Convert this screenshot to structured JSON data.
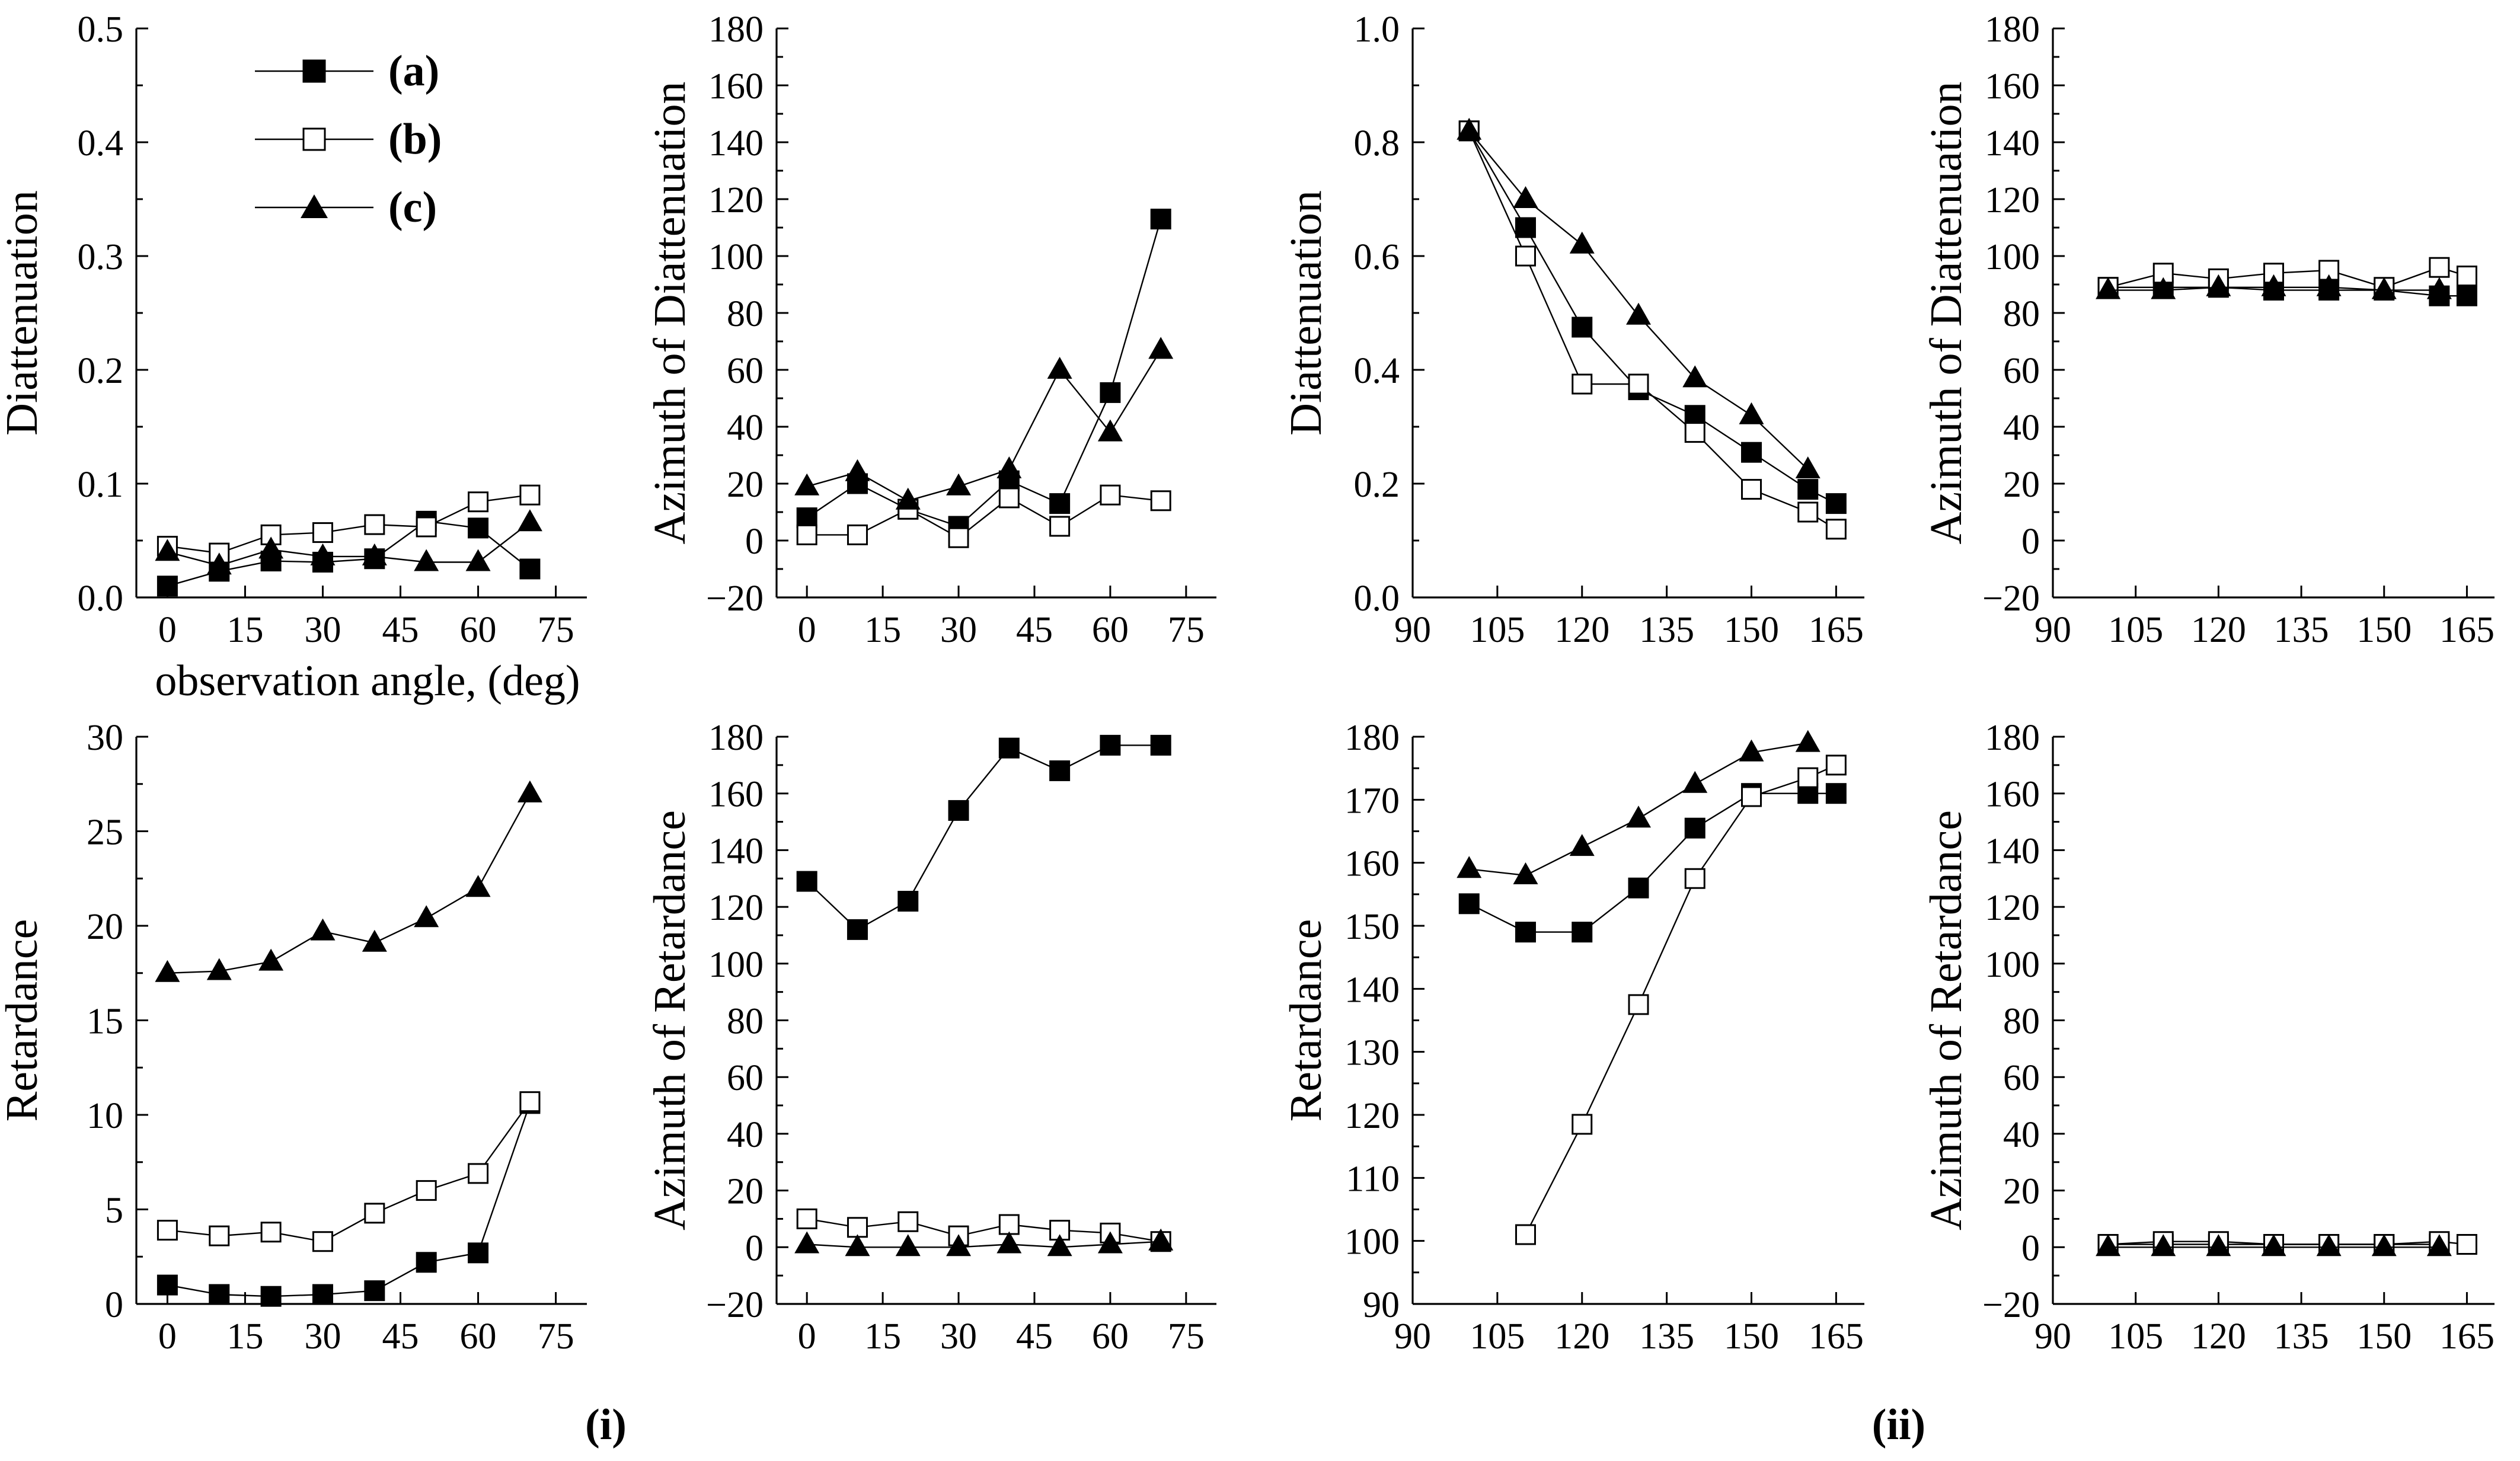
{
  "legend": {
    "entries": [
      {
        "label": "(a)",
        "marker": "filled-square"
      },
      {
        "label": "(b)",
        "marker": "open-square"
      },
      {
        "label": "(c)",
        "marker": "filled-triangle"
      }
    ]
  },
  "group_labels": [
    "(i)",
    "(ii)"
  ],
  "chart_data": [
    {
      "type": "line",
      "id": "p1",
      "group": "(i)",
      "xlabel": "observation angle, (deg)",
      "ylabel": "Diattenuation",
      "xlim": [
        -6,
        81
      ],
      "ylim": [
        0,
        0.5
      ],
      "xticks": [
        0,
        15,
        30,
        45,
        60,
        75
      ],
      "yticks": [
        0.0,
        0.1,
        0.2,
        0.3,
        0.4,
        0.5
      ],
      "ytick_labels": [
        "0.0",
        "0.1",
        "0.2",
        "0.3",
        "0.4",
        "0.5"
      ],
      "legend": "top-left",
      "series": [
        {
          "name": "(a)",
          "marker": "filled-square",
          "x": [
            0,
            10,
            20,
            30,
            40,
            50,
            60,
            70
          ],
          "y": [
            0.01,
            0.023,
            0.032,
            0.031,
            0.034,
            0.067,
            0.061,
            0.025
          ]
        },
        {
          "name": "(b)",
          "marker": "open-square",
          "x": [
            0,
            10,
            20,
            30,
            40,
            50,
            60,
            70
          ],
          "y": [
            0.045,
            0.039,
            0.055,
            0.057,
            0.064,
            0.062,
            0.084,
            0.09
          ]
        },
        {
          "name": "(c)",
          "marker": "filled-triangle",
          "x": [
            0,
            10,
            20,
            30,
            40,
            50,
            60,
            70
          ],
          "y": [
            0.04,
            0.028,
            0.042,
            0.036,
            0.036,
            0.031,
            0.031,
            0.066
          ]
        }
      ]
    },
    {
      "type": "line",
      "id": "p2",
      "group": "(i)",
      "xlabel": "",
      "ylabel": "Azimuth of Diattenuation",
      "xlim": [
        -6,
        81
      ],
      "ylim": [
        -20,
        180
      ],
      "xticks": [
        0,
        15,
        30,
        45,
        60,
        75
      ],
      "yticks": [
        -20,
        0,
        20,
        40,
        60,
        80,
        100,
        120,
        140,
        160,
        180
      ],
      "ytick_labels": [
        "−20",
        "0",
        "20",
        "40",
        "60",
        "80",
        "100",
        "120",
        "140",
        "160",
        "180"
      ],
      "series": [
        {
          "name": "(a)",
          "marker": "filled-square",
          "x": [
            0,
            10,
            20,
            30,
            40,
            50,
            60,
            70
          ],
          "y": [
            8,
            20,
            11,
            5,
            21,
            13,
            52,
            113
          ]
        },
        {
          "name": "(b)",
          "marker": "open-square",
          "x": [
            0,
            10,
            20,
            30,
            40,
            50,
            60,
            70
          ],
          "y": [
            2,
            2,
            11,
            1,
            15,
            5,
            16,
            14
          ]
        },
        {
          "name": "(c)",
          "marker": "filled-triangle",
          "x": [
            0,
            10,
            20,
            30,
            40,
            50,
            60,
            70
          ],
          "y": [
            19,
            24,
            14,
            19,
            25,
            60,
            38,
            67
          ]
        }
      ]
    },
    {
      "type": "line",
      "id": "p3",
      "group": "(ii)",
      "xlabel": "",
      "ylabel": "Diattenuation",
      "xlim": [
        90,
        170
      ],
      "ylim": [
        0,
        1
      ],
      "xticks": [
        90,
        105,
        120,
        135,
        150,
        165
      ],
      "yticks": [
        0.0,
        0.2,
        0.4,
        0.6,
        0.8,
        1.0
      ],
      "ytick_labels": [
        "0.0",
        "0.2",
        "0.4",
        "0.6",
        "0.8",
        "1.0"
      ],
      "series": [
        {
          "name": "(a)",
          "marker": "filled-square",
          "x": [
            100,
            110,
            120,
            130,
            140,
            150,
            160,
            165
          ],
          "y": [
            0.82,
            0.65,
            0.475,
            0.365,
            0.32,
            0.255,
            0.19,
            0.165
          ]
        },
        {
          "name": "(b)",
          "marker": "open-square",
          "x": [
            100,
            110,
            120,
            130,
            140,
            150,
            160,
            165
          ],
          "y": [
            0.82,
            0.6,
            0.375,
            0.375,
            0.29,
            0.19,
            0.15,
            0.12
          ]
        },
        {
          "name": "(c)",
          "marker": "filled-triangle",
          "x": [
            100,
            110,
            120,
            130,
            140,
            150,
            160
          ],
          "y": [
            0.82,
            0.7,
            0.62,
            0.495,
            0.385,
            0.32,
            0.225
          ]
        }
      ]
    },
    {
      "type": "line",
      "id": "p4",
      "group": "(ii)",
      "xlabel": "",
      "ylabel": "Azimuth of Diattenuation",
      "xlim": [
        90,
        170
      ],
      "ylim": [
        -20,
        180
      ],
      "xticks": [
        90,
        105,
        120,
        135,
        150,
        165
      ],
      "yticks": [
        -20,
        0,
        20,
        40,
        60,
        80,
        100,
        120,
        140,
        160,
        180
      ],
      "ytick_labels": [
        "−20",
        "0",
        "20",
        "40",
        "60",
        "80",
        "100",
        "120",
        "140",
        "160",
        "180"
      ],
      "series": [
        {
          "name": "(a)",
          "marker": "filled-square",
          "x": [
            100,
            110,
            120,
            130,
            140,
            150,
            160,
            165
          ],
          "y": [
            89,
            89,
            89,
            88,
            88,
            88,
            86,
            86
          ]
        },
        {
          "name": "(b)",
          "marker": "open-square",
          "x": [
            100,
            110,
            120,
            130,
            140,
            150,
            160,
            165
          ],
          "y": [
            89,
            94,
            92,
            94,
            95,
            89,
            96,
            93
          ]
        },
        {
          "name": "(c)",
          "marker": "filled-triangle",
          "x": [
            100,
            110,
            120,
            130,
            140,
            150,
            160
          ],
          "y": [
            88,
            88,
            89,
            89,
            89,
            88,
            88
          ]
        }
      ]
    },
    {
      "type": "line",
      "id": "p5",
      "group": "(i)",
      "xlabel": "",
      "ylabel": "Retardance",
      "xlim": [
        -6,
        81
      ],
      "ylim": [
        0,
        30
      ],
      "xticks": [
        0,
        15,
        30,
        45,
        60,
        75
      ],
      "yticks": [
        0,
        5,
        10,
        15,
        20,
        25,
        30
      ],
      "ytick_labels": [
        "0",
        "5",
        "10",
        "15",
        "20",
        "25",
        "30"
      ],
      "series": [
        {
          "name": "(a)",
          "marker": "filled-square",
          "x": [
            0,
            10,
            20,
            30,
            40,
            50,
            60,
            70
          ],
          "y": [
            1.0,
            0.5,
            0.4,
            0.5,
            0.7,
            2.2,
            2.7,
            10.6
          ]
        },
        {
          "name": "(b)",
          "marker": "open-square",
          "x": [
            0,
            10,
            20,
            30,
            40,
            50,
            60,
            70
          ],
          "y": [
            3.9,
            3.6,
            3.8,
            3.3,
            4.8,
            6.0,
            6.9,
            10.7
          ]
        },
        {
          "name": "(c)",
          "marker": "filled-triangle",
          "x": [
            0,
            10,
            20,
            30,
            40,
            50,
            60,
            70
          ],
          "y": [
            17.5,
            17.6,
            18.1,
            19.7,
            19.1,
            20.4,
            22.0,
            27.0
          ]
        }
      ]
    },
    {
      "type": "line",
      "id": "p6",
      "group": "(i)",
      "xlabel": "",
      "ylabel": "Azimuth of Retardance",
      "xlim": [
        -6,
        81
      ],
      "ylim": [
        -20,
        180
      ],
      "xticks": [
        0,
        15,
        30,
        45,
        60,
        75
      ],
      "yticks": [
        -20,
        0,
        20,
        40,
        60,
        80,
        100,
        120,
        140,
        160,
        180
      ],
      "ytick_labels": [
        "−20",
        "0",
        "20",
        "40",
        "60",
        "80",
        "100",
        "120",
        "140",
        "160",
        "180"
      ],
      "series": [
        {
          "name": "(a)",
          "marker": "filled-square",
          "x": [
            0,
            10,
            20,
            30,
            40,
            50,
            60,
            70
          ],
          "y": [
            129,
            112,
            122,
            154,
            176,
            168,
            177,
            177
          ]
        },
        {
          "name": "(b)",
          "marker": "open-square",
          "x": [
            0,
            10,
            20,
            30,
            40,
            50,
            60,
            70
          ],
          "y": [
            10,
            7,
            9,
            4,
            8,
            6,
            5,
            2
          ]
        },
        {
          "name": "(c)",
          "marker": "filled-triangle",
          "x": [
            0,
            10,
            20,
            30,
            40,
            50,
            60,
            70
          ],
          "y": [
            1,
            0,
            0,
            0,
            1,
            0,
            1,
            2
          ]
        }
      ]
    },
    {
      "type": "line",
      "id": "p7",
      "group": "(ii)",
      "xlabel": "",
      "ylabel": "Retardance",
      "xlim": [
        90,
        170
      ],
      "ylim": [
        90,
        180
      ],
      "xticks": [
        90,
        105,
        120,
        135,
        150,
        165
      ],
      "yticks": [
        90,
        100,
        110,
        120,
        130,
        140,
        150,
        160,
        170,
        180
      ],
      "ytick_labels": [
        "90",
        "100",
        "110",
        "120",
        "130",
        "140",
        "150",
        "160",
        "170",
        "180"
      ],
      "series": [
        {
          "name": "(a)",
          "marker": "filled-square",
          "x": [
            100,
            110,
            120,
            130,
            140,
            150,
            160,
            165
          ],
          "y": [
            153.5,
            149,
            149,
            156,
            165.5,
            171,
            171,
            171
          ]
        },
        {
          "name": "(b)",
          "marker": "open-square",
          "x": [
            110,
            120,
            130,
            140,
            150,
            160,
            165
          ],
          "y": [
            101,
            118.5,
            137.5,
            157.5,
            170.5,
            173.5,
            175.5
          ]
        },
        {
          "name": "(c)",
          "marker": "filled-triangle",
          "x": [
            100,
            110,
            120,
            130,
            140,
            150,
            160
          ],
          "y": [
            159,
            158,
            162.5,
            167,
            172.5,
            177.5,
            179
          ]
        }
      ]
    },
    {
      "type": "line",
      "id": "p8",
      "group": "(ii)",
      "xlabel": "",
      "ylabel": "Azimuth of Retardance",
      "xlim": [
        90,
        170
      ],
      "ylim": [
        -20,
        180
      ],
      "xticks": [
        90,
        105,
        120,
        135,
        150,
        165
      ],
      "yticks": [
        -20,
        0,
        20,
        40,
        60,
        80,
        100,
        120,
        140,
        160,
        180
      ],
      "ytick_labels": [
        "−20",
        "0",
        "20",
        "40",
        "60",
        "80",
        "100",
        "120",
        "140",
        "160",
        "180"
      ],
      "series": [
        {
          "name": "(a)",
          "marker": "filled-square",
          "x": [
            100,
            110,
            120,
            130,
            140,
            150,
            160
          ],
          "y": [
            1,
            1,
            1,
            1,
            1,
            1,
            1
          ]
        },
        {
          "name": "(b)",
          "marker": "open-square",
          "x": [
            100,
            110,
            120,
            130,
            140,
            150,
            160,
            165
          ],
          "y": [
            1,
            2,
            2,
            1,
            1,
            1,
            2,
            1
          ]
        },
        {
          "name": "(c)",
          "marker": "filled-triangle",
          "x": [
            100,
            110,
            120,
            130,
            140,
            150,
            160
          ],
          "y": [
            0,
            0,
            0,
            0,
            0,
            0,
            0
          ]
        }
      ]
    }
  ]
}
